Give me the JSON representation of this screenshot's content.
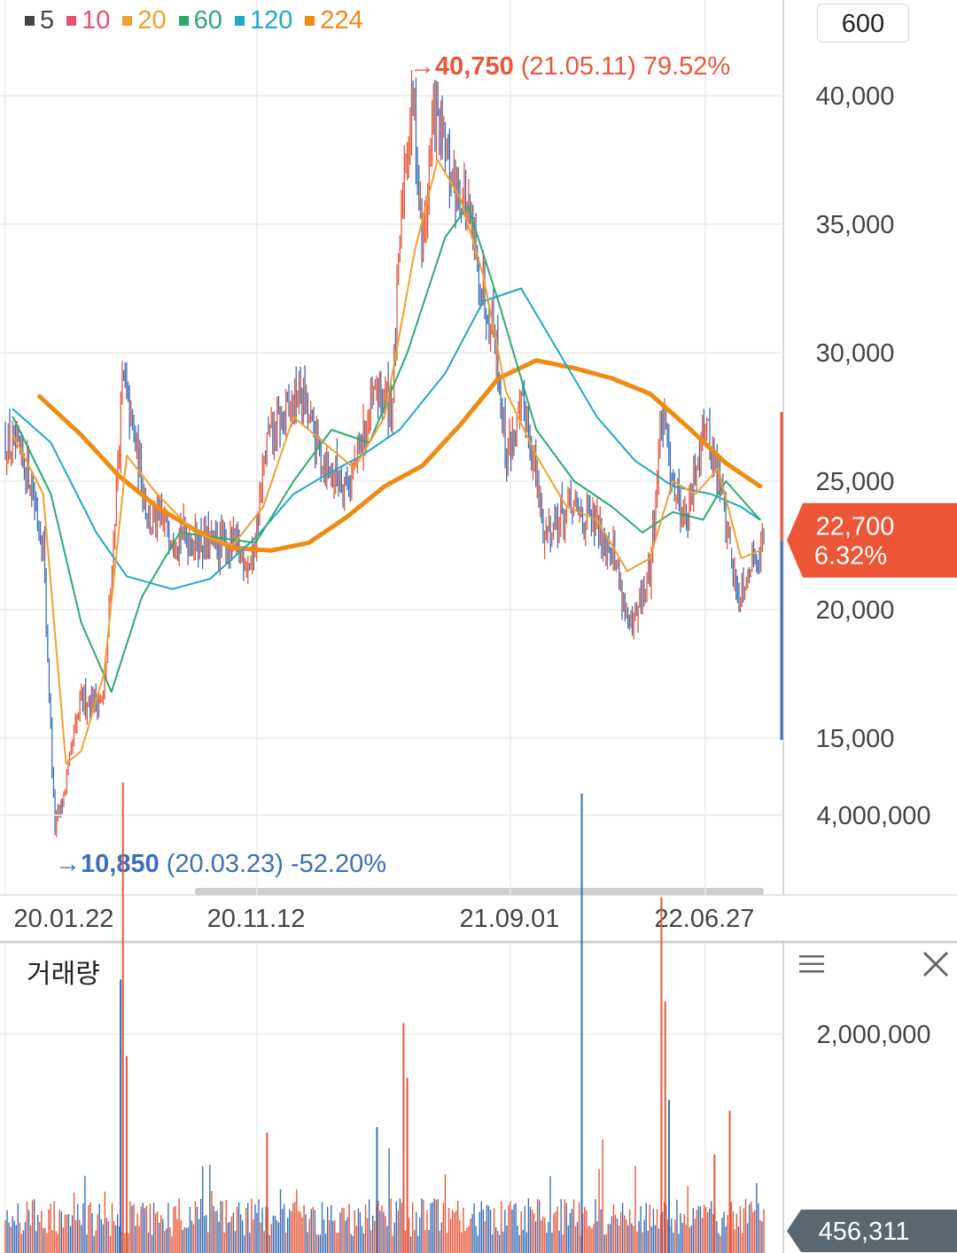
{
  "legend": [
    {
      "label": "5",
      "color": "#444444"
    },
    {
      "label": "10",
      "color": "#e8506a"
    },
    {
      "label": "20",
      "color": "#f0a030"
    },
    {
      "label": "60",
      "color": "#2eaa6e"
    },
    {
      "label": "120",
      "color": "#20a8c8"
    },
    {
      "label": "224",
      "color": "#f08a10"
    }
  ],
  "period_button": "600",
  "volume_title": "거래량",
  "colors": {
    "up": "#e8573a",
    "down": "#3e6fb5",
    "grid": "#ebebeb",
    "axis_text": "#444444"
  },
  "chart_data": [
    {
      "type": "candlestick",
      "x_tick_labels": [
        "20.01.22",
        "20.11.12",
        "21.09.01",
        "22.06.27"
      ],
      "y_tick_labels": [
        "15,000",
        "20,000",
        "25,000",
        "30,000",
        "35,000",
        "40,000"
      ],
      "y_ticks": [
        15000,
        20000,
        25000,
        30000,
        35000,
        40000
      ],
      "ylim": [
        10000,
        43000
      ],
      "grid": true,
      "close_path": [
        {
          "t": 0,
          "v": 26500
        },
        {
          "t": 0.03,
          "v": 25500
        },
        {
          "t": 0.05,
          "v": 22500
        },
        {
          "t": 0.065,
          "v": 11500
        },
        {
          "t": 0.075,
          "v": 12500
        },
        {
          "t": 0.1,
          "v": 16500
        },
        {
          "t": 0.13,
          "v": 16500
        },
        {
          "t": 0.155,
          "v": 29000
        },
        {
          "t": 0.19,
          "v": 23500
        },
        {
          "t": 0.23,
          "v": 23000
        },
        {
          "t": 0.27,
          "v": 22500
        },
        {
          "t": 0.3,
          "v": 22500
        },
        {
          "t": 0.325,
          "v": 21800
        },
        {
          "t": 0.345,
          "v": 26500
        },
        {
          "t": 0.39,
          "v": 28500
        },
        {
          "t": 0.41,
          "v": 26500
        },
        {
          "t": 0.425,
          "v": 25500
        },
        {
          "t": 0.455,
          "v": 25000
        },
        {
          "t": 0.49,
          "v": 28500
        },
        {
          "t": 0.51,
          "v": 28000
        },
        {
          "t": 0.525,
          "v": 37000
        },
        {
          "t": 0.538,
          "v": 40000
        },
        {
          "t": 0.55,
          "v": 34000
        },
        {
          "t": 0.565,
          "v": 39500
        },
        {
          "t": 0.585,
          "v": 37000
        },
        {
          "t": 0.605,
          "v": 36000
        },
        {
          "t": 0.625,
          "v": 33000
        },
        {
          "t": 0.645,
          "v": 31000
        },
        {
          "t": 0.66,
          "v": 26000
        },
        {
          "t": 0.685,
          "v": 28000
        },
        {
          "t": 0.71,
          "v": 23000
        },
        {
          "t": 0.745,
          "v": 24000
        },
        {
          "t": 0.77,
          "v": 23500
        },
        {
          "t": 0.8,
          "v": 22500
        },
        {
          "t": 0.825,
          "v": 19000
        },
        {
          "t": 0.85,
          "v": 21500
        },
        {
          "t": 0.865,
          "v": 27500
        },
        {
          "t": 0.885,
          "v": 24500
        },
        {
          "t": 0.9,
          "v": 23500
        },
        {
          "t": 0.92,
          "v": 27500
        },
        {
          "t": 0.945,
          "v": 24500
        },
        {
          "t": 0.965,
          "v": 20500
        },
        {
          "t": 0.985,
          "v": 22000
        },
        {
          "t": 1,
          "v": 22700
        }
      ],
      "series": [
        {
          "name": "224",
          "color": "#f08a10",
          "values": [
            {
              "t": 0.045,
              "v": 28300
            },
            {
              "t": 0.1,
              "v": 26800
            },
            {
              "t": 0.15,
              "v": 25200
            },
            {
              "t": 0.2,
              "v": 24000
            },
            {
              "t": 0.25,
              "v": 23100
            },
            {
              "t": 0.3,
              "v": 22400
            },
            {
              "t": 0.35,
              "v": 22300
            },
            {
              "t": 0.4,
              "v": 22600
            },
            {
              "t": 0.45,
              "v": 23600
            },
            {
              "t": 0.5,
              "v": 24800
            },
            {
              "t": 0.55,
              "v": 25600
            },
            {
              "t": 0.6,
              "v": 27200
            },
            {
              "t": 0.65,
              "v": 29000
            },
            {
              "t": 0.7,
              "v": 29700
            },
            {
              "t": 0.75,
              "v": 29400
            },
            {
              "t": 0.8,
              "v": 29000
            },
            {
              "t": 0.85,
              "v": 28400
            },
            {
              "t": 0.9,
              "v": 27100
            },
            {
              "t": 0.95,
              "v": 25700
            },
            {
              "t": 0.995,
              "v": 24800
            }
          ]
        },
        {
          "name": "120",
          "color": "#20a8c8",
          "values": [
            {
              "t": 0.01,
              "v": 27800
            },
            {
              "t": 0.06,
              "v": 26500
            },
            {
              "t": 0.12,
              "v": 23000
            },
            {
              "t": 0.16,
              "v": 21300
            },
            {
              "t": 0.22,
              "v": 20800
            },
            {
              "t": 0.27,
              "v": 21200
            },
            {
              "t": 0.33,
              "v": 22800
            },
            {
              "t": 0.38,
              "v": 24500
            },
            {
              "t": 0.42,
              "v": 25200
            },
            {
              "t": 0.47,
              "v": 26000
            },
            {
              "t": 0.52,
              "v": 27000
            },
            {
              "t": 0.58,
              "v": 29200
            },
            {
              "t": 0.63,
              "v": 32000
            },
            {
              "t": 0.68,
              "v": 32500
            },
            {
              "t": 0.73,
              "v": 30000
            },
            {
              "t": 0.78,
              "v": 27500
            },
            {
              "t": 0.83,
              "v": 25800
            },
            {
              "t": 0.88,
              "v": 24800
            },
            {
              "t": 0.93,
              "v": 24500
            },
            {
              "t": 0.97,
              "v": 24000
            },
            {
              "t": 0.995,
              "v": 23500
            }
          ]
        },
        {
          "name": "60",
          "color": "#2eaa6e",
          "values": [
            {
              "t": 0.01,
              "v": 27500
            },
            {
              "t": 0.06,
              "v": 24500
            },
            {
              "t": 0.1,
              "v": 19500
            },
            {
              "t": 0.14,
              "v": 16800
            },
            {
              "t": 0.18,
              "v": 20500
            },
            {
              "t": 0.23,
              "v": 23000
            },
            {
              "t": 0.28,
              "v": 22800
            },
            {
              "t": 0.33,
              "v": 22600
            },
            {
              "t": 0.38,
              "v": 25000
            },
            {
              "t": 0.43,
              "v": 27000
            },
            {
              "t": 0.48,
              "v": 26500
            },
            {
              "t": 0.53,
              "v": 30000
            },
            {
              "t": 0.58,
              "v": 34500
            },
            {
              "t": 0.61,
              "v": 35700
            },
            {
              "t": 0.65,
              "v": 32000
            },
            {
              "t": 0.7,
              "v": 27000
            },
            {
              "t": 0.75,
              "v": 25000
            },
            {
              "t": 0.8,
              "v": 24000
            },
            {
              "t": 0.84,
              "v": 23000
            },
            {
              "t": 0.88,
              "v": 23800
            },
            {
              "t": 0.92,
              "v": 23500
            },
            {
              "t": 0.95,
              "v": 25000
            },
            {
              "t": 0.98,
              "v": 24000
            },
            {
              "t": 0.995,
              "v": 23500
            }
          ]
        },
        {
          "name": "20",
          "color": "#f0a030",
          "values": [
            {
              "t": 0.01,
              "v": 26800
            },
            {
              "t": 0.05,
              "v": 24500
            },
            {
              "t": 0.08,
              "v": 14000
            },
            {
              "t": 0.1,
              "v": 14500
            },
            {
              "t": 0.13,
              "v": 17500
            },
            {
              "t": 0.16,
              "v": 26000
            },
            {
              "t": 0.2,
              "v": 24500
            },
            {
              "t": 0.25,
              "v": 23000
            },
            {
              "t": 0.3,
              "v": 22500
            },
            {
              "t": 0.34,
              "v": 24000
            },
            {
              "t": 0.38,
              "v": 27500
            },
            {
              "t": 0.42,
              "v": 26500
            },
            {
              "t": 0.46,
              "v": 25500
            },
            {
              "t": 0.5,
              "v": 27500
            },
            {
              "t": 0.54,
              "v": 34000
            },
            {
              "t": 0.57,
              "v": 37500
            },
            {
              "t": 0.6,
              "v": 36000
            },
            {
              "t": 0.63,
              "v": 33000
            },
            {
              "t": 0.66,
              "v": 28500
            },
            {
              "t": 0.7,
              "v": 26000
            },
            {
              "t": 0.74,
              "v": 24000
            },
            {
              "t": 0.78,
              "v": 23500
            },
            {
              "t": 0.82,
              "v": 21500
            },
            {
              "t": 0.85,
              "v": 22000
            },
            {
              "t": 0.88,
              "v": 25000
            },
            {
              "t": 0.91,
              "v": 24500
            },
            {
              "t": 0.94,
              "v": 25500
            },
            {
              "t": 0.97,
              "v": 22000
            },
            {
              "t": 0.995,
              "v": 22300
            }
          ]
        }
      ],
      "annotations": [
        {
          "arrow": "→",
          "price": "40,750",
          "detail": "(21.05.11) 79.52%",
          "kind": "high",
          "t": 0.538,
          "v": 40750
        },
        {
          "arrow": "→",
          "price": "10,850",
          "detail": "(20.03.23) -52.20%",
          "kind": "low",
          "t": 0.065,
          "v": 10850
        }
      ],
      "current": {
        "price": "22,700",
        "change": "6.32%",
        "value": 22700
      }
    },
    {
      "type": "bar",
      "title": "거래량",
      "y_tick_labels": [
        "2,000,000",
        "4,000,000"
      ],
      "y_ticks": [
        2000000,
        4000000
      ],
      "ylim": [
        0,
        4700000
      ],
      "current": {
        "label": "456,311",
        "value": 456311
      },
      "spikes": [
        {
          "t": 0.155,
          "v": 4300000
        },
        {
          "t": 0.152,
          "v": 2500000
        },
        {
          "t": 0.16,
          "v": 1800000
        },
        {
          "t": 0.345,
          "v": 1100000
        },
        {
          "t": 0.49,
          "v": 1150000
        },
        {
          "t": 0.525,
          "v": 2100000
        },
        {
          "t": 0.53,
          "v": 1600000
        },
        {
          "t": 0.76,
          "v": 4200000
        },
        {
          "t": 0.865,
          "v": 3250000
        },
        {
          "t": 0.87,
          "v": 2300000
        },
        {
          "t": 0.875,
          "v": 1400000
        },
        {
          "t": 0.955,
          "v": 1300000
        },
        {
          "t": 0.935,
          "v": 900000
        }
      ]
    }
  ]
}
